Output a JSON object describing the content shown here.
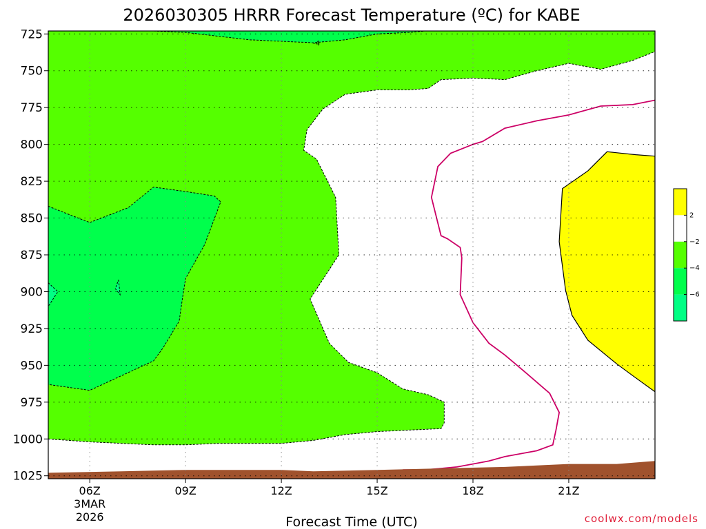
{
  "title": "2026030305 HRRR Forecast Temperature (ºC) for KABE",
  "credit": "coolwx.com/models",
  "colors": {
    "t_lt_neg6": "#00ff84",
    "t_neg6_neg4": "#00ff4c",
    "t_neg4_neg2": "#55ff00",
    "t_neg2_2": "#ffffff",
    "t_gt_2": "#ffff00",
    "ground": "#a0522d",
    "zero_line": "#cc0066"
  },
  "chart_data": {
    "type": "contour",
    "title": "2026030305 HRRR Forecast Temperature (ºC) for KABE",
    "xlabel": "Forecast Time (UTC)",
    "ylabel": "",
    "x_range_hours": [
      4.7,
      23.7
    ],
    "y_range_hPa": [
      1027,
      723
    ],
    "y_inverted": true,
    "grid": true,
    "x_ticks": [
      {
        "hour": 6,
        "label": "06Z",
        "date_label": "3MAR",
        "year_label": "2026"
      },
      {
        "hour": 9,
        "label": "09Z"
      },
      {
        "hour": 12,
        "label": "12Z"
      },
      {
        "hour": 15,
        "label": "15Z"
      },
      {
        "hour": 18,
        "label": "18Z"
      },
      {
        "hour": 21,
        "label": "21Z"
      }
    ],
    "y_ticks": [
      725,
      750,
      775,
      800,
      825,
      850,
      875,
      900,
      925,
      950,
      975,
      1000,
      1025
    ],
    "colorbar": {
      "tick_labels": [
        "2",
        "−2",
        "−4",
        "−6"
      ],
      "bins": [
        "> 2",
        "-2 to 2",
        "-4 to -2",
        "-6 to -4",
        "< -6"
      ]
    },
    "contour_labels": [
      {
        "label": "-4",
        "hour": 13.1,
        "pressure_hPa": 731
      }
    ],
    "regions": {
      "minus2_boundary": [
        [
          4.7,
          1000
        ],
        [
          6,
          1002
        ],
        [
          7,
          1003
        ],
        [
          8,
          1004
        ],
        [
          9,
          1004
        ],
        [
          10,
          1003
        ],
        [
          11,
          1003
        ],
        [
          12,
          1003
        ],
        [
          13,
          1001
        ],
        [
          14,
          997
        ],
        [
          15,
          995
        ],
        [
          16,
          994
        ],
        [
          17,
          993
        ],
        [
          17.1,
          989
        ],
        [
          17.1,
          975
        ],
        [
          16.6,
          970
        ],
        [
          15.8,
          966
        ],
        [
          15,
          955
        ],
        [
          14.1,
          948
        ],
        [
          13.5,
          935
        ],
        [
          12.9,
          905
        ],
        [
          13.8,
          875
        ],
        [
          13.7,
          836
        ],
        [
          13.1,
          810
        ],
        [
          12.7,
          804
        ],
        [
          12.8,
          790
        ],
        [
          13.3,
          776
        ],
        [
          14,
          766
        ],
        [
          15,
          763
        ],
        [
          16,
          763
        ],
        [
          16.6,
          762
        ],
        [
          17,
          756
        ],
        [
          18,
          755
        ],
        [
          19,
          756
        ],
        [
          20,
          750
        ],
        [
          21,
          745
        ],
        [
          22,
          749
        ],
        [
          23,
          743
        ],
        [
          23.7,
          737
        ],
        [
          23.7,
          723
        ]
      ],
      "minus4_region": [
        [
          4.7,
          842
        ],
        [
          5.4,
          848
        ],
        [
          6,
          853
        ],
        [
          7.2,
          843
        ],
        [
          8,
          829
        ],
        [
          9,
          832
        ],
        [
          9.9,
          835
        ],
        [
          10.1,
          839
        ],
        [
          9.6,
          868
        ],
        [
          9,
          891
        ],
        [
          8.9,
          905
        ],
        [
          8.8,
          920
        ],
        [
          8.3,
          938
        ],
        [
          8,
          947
        ],
        [
          7,
          957
        ],
        [
          6,
          967
        ],
        [
          4.7,
          963
        ]
      ],
      "minus4_top": [
        [
          8,
          723
        ],
        [
          9,
          724
        ],
        [
          11,
          729
        ],
        [
          13,
          731
        ],
        [
          14,
          729
        ],
        [
          15,
          725
        ],
        [
          16,
          724
        ],
        [
          16.5,
          723
        ]
      ],
      "minus6_pocket_left": [
        [
          4.7,
          894
        ],
        [
          5.0,
          900
        ],
        [
          4.7,
          910
        ]
      ],
      "minus6_pocket_small": [
        [
          6.9,
          892
        ],
        [
          6.95,
          902
        ],
        [
          6.8,
          898
        ]
      ],
      "plus2_region": [
        [
          23.7,
          808
        ],
        [
          23.1,
          807
        ],
        [
          22.2,
          805
        ],
        [
          21.6,
          818
        ],
        [
          20.8,
          830
        ],
        [
          20.7,
          866
        ],
        [
          20.9,
          899
        ],
        [
          21.1,
          916
        ],
        [
          21.6,
          933
        ],
        [
          22.5,
          949
        ],
        [
          23,
          957
        ],
        [
          23.7,
          968
        ]
      ],
      "zero_line": [
        [
          15.8,
          1021
        ],
        [
          16.5,
          1021
        ],
        [
          17.5,
          1019
        ],
        [
          18,
          1017
        ],
        [
          18.5,
          1015
        ],
        [
          19,
          1012
        ],
        [
          20,
          1008
        ],
        [
          20.5,
          1004
        ],
        [
          20.6,
          994
        ],
        [
          20.7,
          982
        ],
        [
          20.4,
          969
        ],
        [
          19.6,
          954
        ],
        [
          19,
          943
        ],
        [
          18.5,
          935
        ],
        [
          18,
          921
        ],
        [
          17.6,
          902
        ],
        [
          17.65,
          877
        ],
        [
          17.6,
          870
        ],
        [
          17.2,
          864
        ],
        [
          17,
          862
        ],
        [
          16.7,
          836
        ],
        [
          16.9,
          815
        ],
        [
          17.3,
          806
        ],
        [
          18,
          800
        ],
        [
          18.3,
          798
        ],
        [
          19,
          789
        ],
        [
          20,
          784
        ],
        [
          21,
          780
        ],
        [
          22,
          774
        ],
        [
          23,
          773
        ],
        [
          23.7,
          770
        ]
      ],
      "ground": [
        [
          4.7,
          1023
        ],
        [
          7,
          1022
        ],
        [
          9,
          1021
        ],
        [
          12,
          1021
        ],
        [
          13,
          1022
        ],
        [
          15,
          1021
        ],
        [
          17,
          1020
        ],
        [
          19,
          1019
        ],
        [
          21,
          1017
        ],
        [
          22.5,
          1017
        ],
        [
          23.7,
          1015
        ]
      ]
    }
  }
}
